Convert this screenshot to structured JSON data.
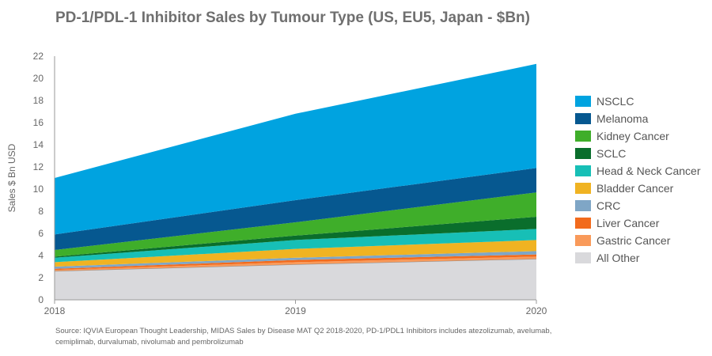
{
  "chart_data": {
    "type": "area",
    "stacked": true,
    "title": "PD-1/PDL-1 Inhibitor Sales by Tumour Type (US, EU5, Japan - $Bn)",
    "ylabel": "Sales $ Bn USD",
    "xlabel": "",
    "x": [
      "2018",
      "2019",
      "2020"
    ],
    "ylim": [
      0,
      22
    ],
    "yticks": [
      "0",
      "2",
      "4",
      "6",
      "8",
      "10",
      "12",
      "14",
      "16",
      "18",
      "20",
      "22"
    ],
    "grid": false,
    "legend_position": "right",
    "series": [
      {
        "name": "All Other",
        "color": "#d9d9dc",
        "values": [
          2.6,
          3.2,
          3.7
        ]
      },
      {
        "name": "Gastric Cancer",
        "color": "#f99a5a",
        "values": [
          0.1,
          0.2,
          0.2
        ]
      },
      {
        "name": "Liver Cancer",
        "color": "#f26b1d",
        "values": [
          0.1,
          0.2,
          0.2
        ]
      },
      {
        "name": "CRC",
        "color": "#7fa6c6",
        "values": [
          0.2,
          0.2,
          0.3
        ]
      },
      {
        "name": "Bladder Cancer",
        "color": "#f0b322",
        "values": [
          0.4,
          0.8,
          1.0
        ]
      },
      {
        "name": "Head & Neck Cancer",
        "color": "#17bfb6",
        "values": [
          0.4,
          0.8,
          1.0
        ]
      },
      {
        "name": "SCLC",
        "color": "#0a6e2c",
        "values": [
          0.1,
          0.4,
          1.1
        ]
      },
      {
        "name": "Kidney Cancer",
        "color": "#3fae2a",
        "values": [
          0.6,
          1.2,
          2.2
        ]
      },
      {
        "name": "Melanoma",
        "color": "#065890",
        "values": [
          1.4,
          2.0,
          2.2
        ]
      },
      {
        "name": "NSCLC",
        "color": "#00a3e0",
        "values": [
          5.1,
          7.8,
          9.4
        ]
      }
    ]
  },
  "legend": [
    {
      "label": "NSCLC",
      "color": "#00a3e0"
    },
    {
      "label": "Melanoma",
      "color": "#065890"
    },
    {
      "label": "Kidney Cancer",
      "color": "#3fae2a"
    },
    {
      "label": "SCLC",
      "color": "#0a6e2c"
    },
    {
      "label": "Head & Neck Cancer",
      "color": "#17bfb6"
    },
    {
      "label": "Bladder Cancer",
      "color": "#f0b322"
    },
    {
      "label": "CRC",
      "color": "#7fa6c6"
    },
    {
      "label": "Liver Cancer",
      "color": "#f26b1d"
    },
    {
      "label": "Gastric Cancer",
      "color": "#f99a5a"
    },
    {
      "label": "All Other",
      "color": "#d9d9dc"
    }
  ],
  "source_note": "Source: IQVIA European Thought Leadership, MIDAS Sales by Disease MAT Q2 2018-2020, PD-1/PDL1 Inhibitors includes atezolizumab, avelumab, cemiplimab, durvalumab, nivolumab and pembrolizumab"
}
